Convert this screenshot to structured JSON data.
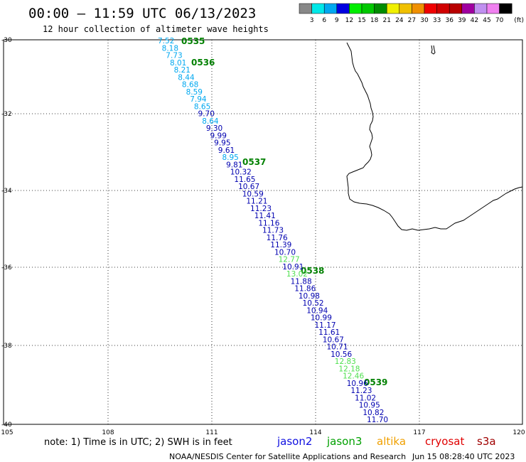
{
  "header": {
    "title": "00:00 – 11:59 UTC 06/13/2023",
    "subtitle": "12 hour collection of altimeter wave heights"
  },
  "legend": {
    "colors": [
      "#888888",
      "#00e8e8",
      "#00a8f0",
      "#0000e0",
      "#00ee00",
      "#00c800",
      "#008c00",
      "#f0f000",
      "#f0c000",
      "#f09000",
      "#f00000",
      "#d00000",
      "#b80000",
      "#a000a0",
      "#c090f0",
      "#f080f0",
      "#000000"
    ],
    "labels": [
      "3",
      "6",
      "9",
      "12",
      "15",
      "18",
      "21",
      "24",
      "27",
      "30",
      "33",
      "36",
      "39",
      "42",
      "45",
      "70",
      "(ft)"
    ]
  },
  "map": {
    "lon_range": [
      105,
      120
    ],
    "lat_range": [
      -30,
      -40
    ],
    "x_ticks": [
      "105",
      "108",
      "111",
      "114",
      "117",
      "120"
    ],
    "y_ticks": [
      "-30",
      "-32",
      "-34",
      "-36",
      "-38",
      "-40"
    ],
    "grid": "dotted",
    "coastline": "Southwest Australia"
  },
  "passes": [
    {
      "label": "0535"
    },
    {
      "label": "0536"
    },
    {
      "label": "0537"
    },
    {
      "label": "0538"
    },
    {
      "label": "0539"
    }
  ],
  "observations": [
    {
      "text": "7.52",
      "color": "#00a8f0"
    },
    {
      "text": "8.18",
      "color": "#00a8f0"
    },
    {
      "text": "7.73",
      "color": "#00a8f0"
    },
    {
      "text": "8.01",
      "color": "#00a8f0"
    },
    {
      "text": "8.21",
      "color": "#00a8f0"
    },
    {
      "text": "8.44",
      "color": "#00a8f0"
    },
    {
      "text": "8.68",
      "color": "#00a8f0"
    },
    {
      "text": "8.59",
      "color": "#00a8f0"
    },
    {
      "text": "7.94",
      "color": "#00a8f0"
    },
    {
      "text": "8.65",
      "color": "#00a8f0"
    },
    {
      "text": "9.70",
      "color": "#0000b0"
    },
    {
      "text": "8.64",
      "color": "#00a8f0"
    },
    {
      "text": "9.30",
      "color": "#0000b0"
    },
    {
      "text": "9.99",
      "color": "#0000b0"
    },
    {
      "text": "9.95",
      "color": "#0000b0"
    },
    {
      "text": "9.61",
      "color": "#0000b0"
    },
    {
      "text": "8.95",
      "color": "#00a8f0"
    },
    {
      "text": "9.81",
      "color": "#0000b0"
    },
    {
      "text": "10.32",
      "color": "#0000b0"
    },
    {
      "text": "11.65",
      "color": "#0000b0"
    },
    {
      "text": "10.67",
      "color": "#0000b0"
    },
    {
      "text": "10.59",
      "color": "#0000b0"
    },
    {
      "text": "11.21",
      "color": "#0000b0"
    },
    {
      "text": "11.23",
      "color": "#0000b0"
    },
    {
      "text": "11.41",
      "color": "#0000b0"
    },
    {
      "text": "11.16",
      "color": "#0000b0"
    },
    {
      "text": "11.73",
      "color": "#0000b0"
    },
    {
      "text": "11.76",
      "color": "#0000b0"
    },
    {
      "text": "11.39",
      "color": "#0000b0"
    },
    {
      "text": "10.70",
      "color": "#0000b0"
    },
    {
      "text": "12.77",
      "color": "#50e050"
    },
    {
      "text": "10.91",
      "color": "#0000b0"
    },
    {
      "text": "13.02",
      "color": "#50e050"
    },
    {
      "text": "11.88",
      "color": "#0000b0"
    },
    {
      "text": "11.86",
      "color": "#0000b0"
    },
    {
      "text": "10.98",
      "color": "#0000b0"
    },
    {
      "text": "10.52",
      "color": "#0000b0"
    },
    {
      "text": "10.94",
      "color": "#0000b0"
    },
    {
      "text": "10.99",
      "color": "#0000b0"
    },
    {
      "text": "11.17",
      "color": "#0000b0"
    },
    {
      "text": "11.61",
      "color": "#0000b0"
    },
    {
      "text": "10.67",
      "color": "#0000b0"
    },
    {
      "text": "10.71",
      "color": "#0000b0"
    },
    {
      "text": "10.56",
      "color": "#0000b0"
    },
    {
      "text": "12.83",
      "color": "#50e050"
    },
    {
      "text": "12.18",
      "color": "#50e050"
    },
    {
      "text": "12.46",
      "color": "#50e050"
    },
    {
      "text": "10.96",
      "color": "#0000b0"
    },
    {
      "text": "11.23",
      "color": "#0000b0"
    },
    {
      "text": "11.02",
      "color": "#0000b0"
    },
    {
      "text": "10.95",
      "color": "#0000b0"
    },
    {
      "text": "10.82",
      "color": "#0000b0"
    },
    {
      "text": "11.70",
      "color": "#0000b0"
    }
  ],
  "footer": {
    "note": "note: 1) Time is in UTC; 2) SWH is in feet",
    "credit": "NOAA/NESDIS Center for Satellite Applications and Research",
    "timestamp": "Jun 15 08:28:40 UTC 2023"
  },
  "satellites": [
    {
      "name": "jason2",
      "color": "#1010e0"
    },
    {
      "name": "jason3",
      "color": "#00a000"
    },
    {
      "name": "altika",
      "color": "#f0a000"
    },
    {
      "name": "cryosat",
      "color": "#e00000"
    },
    {
      "name": "s3a",
      "color": "#a00000"
    }
  ]
}
